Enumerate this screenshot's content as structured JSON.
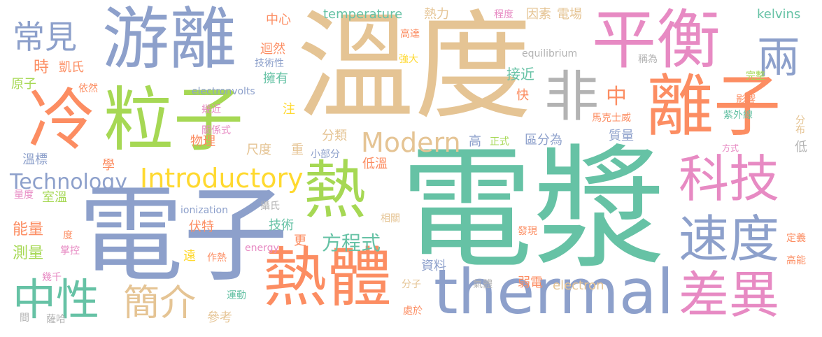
{
  "palette": {
    "green": "#66c2a5",
    "orange": "#fc8d62",
    "blue": "#8da0cb",
    "pink": "#e78ac3",
    "lime": "#a6d854",
    "yellow": "#ffd92f",
    "tan": "#e5c494",
    "gray": "#b3b3b3"
  },
  "words": [
    "電漿",
    "溫度",
    "電子",
    "冷",
    "粒子",
    "游離",
    "平衡",
    "離子",
    "熱",
    "熱體",
    "thermal",
    "科技",
    "速度",
    "差異",
    "非",
    "中性",
    "常見",
    "兩",
    "Introductory",
    "Modern",
    "簡介",
    "Technology",
    "中",
    "方程式",
    "temperature",
    "熱力",
    "因素",
    "電場",
    "kelvins",
    "中心",
    "程度",
    "高達",
    "迴然",
    "強大",
    "技術性",
    "equilibrium",
    "稱為",
    "完整",
    "時",
    "凱氏",
    "接近",
    "原子",
    "依然",
    "擁有",
    "electronvolts",
    "快",
    "影響",
    "幾近",
    "注",
    "馬克士威",
    "紫外線",
    "分布",
    "關係式",
    "物理",
    "分類",
    "尺度",
    "重",
    "小部分",
    "高",
    "正式",
    "區分為",
    "質量",
    "方式",
    "低",
    "溫標",
    "學",
    "低溫",
    "室溫",
    "量度",
    "ionization",
    "攝氏",
    "相關",
    "能量",
    "度",
    "伏特",
    "技術",
    "更",
    "發現",
    "定義",
    "測量",
    "掌控",
    "遠",
    "作熱",
    "energy",
    "資料",
    "高能",
    "幾千",
    "分子",
    "氣體",
    "弱電",
    "electron",
    "運動",
    "處於",
    "間",
    "薩哈",
    "參考"
  ]
}
